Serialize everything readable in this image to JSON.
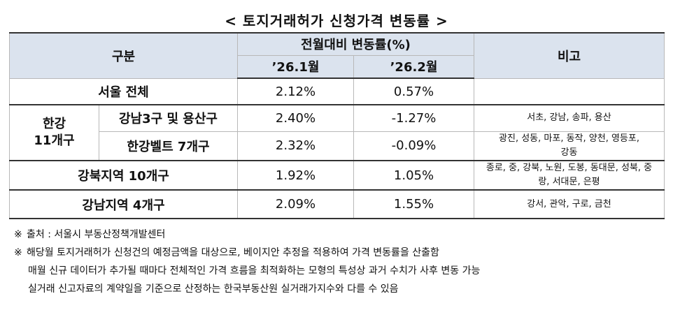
{
  "title": "< 토지거래허가 신청가격 변동률 >",
  "table": {
    "headers": {
      "category": "구분",
      "change_rate": "전월대비 변동률(%)",
      "month1": "’26.1월",
      "month2": "’26.2월",
      "note": "비고"
    },
    "rows": {
      "seoul": {
        "label": "서울 전체",
        "m1": "2.12%",
        "m2": "0.57%",
        "note": ""
      },
      "hangang_group": "한강\n11개구",
      "gangnam3": {
        "label": "강남3구 및 용산구",
        "m1": "2.40%",
        "m2": "-1.27%",
        "note": "서초, 강남, 송파, 용산"
      },
      "hangang_belt": {
        "label": "한강벨트 7개구",
        "m1": "2.32%",
        "m2": "-0.09%",
        "note": "광진, 성동, 마포, 동작, 양천, 영등포, 강동"
      },
      "gangbuk": {
        "label": "강북지역 10개구",
        "m1": "1.92%",
        "m2": "1.05%",
        "note": "종로, 중, 강북, 노원, 도봉, 동대문, 성북, 중랑, 서대문, 은평"
      },
      "gangnam4": {
        "label": "강남지역 4개구",
        "m1": "2.09%",
        "m2": "1.55%",
        "note": "강서, 관악, 구로, 금천"
      }
    }
  },
  "footnotes": {
    "mark": "※",
    "source": "출처 : 서울시 부동산정책개발센터",
    "note_line1": "해당월 토지거래허가 신청건의 예정금액을 대상으로, 베이지안 추정을 적용하여 가격 변동률을 산출함",
    "note_line2": "매월 신규 데이터가 추가될 때마다 전체적인 가격 흐름을 최적화하는 모형의 특성상 과거 수치가 사후 변동 가능",
    "note_line3": "실거래 신고자료의 계약일을 기준으로 산정하는 한국부동산원 실거래가지수와 다를 수 있음"
  }
}
